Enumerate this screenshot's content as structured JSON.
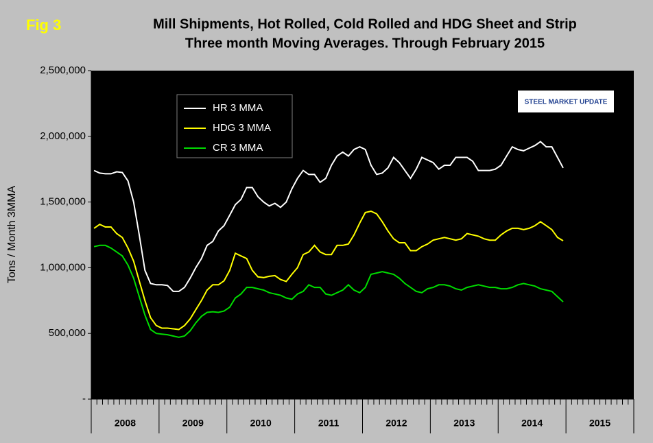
{
  "chart_data": {
    "type": "line",
    "label": "Fig 3",
    "title": "Mill Shipments, Hot Rolled, Cold Rolled and HDG Sheet and Strip",
    "subtitle": "Three month Moving Averages. Through February 2015",
    "y_label": "Tons / Month 3MMA",
    "logo": "STEEL MARKET UPDATE",
    "year_labels": [
      "2008",
      "2009",
      "2010",
      "2011",
      "2012",
      "2013",
      "2014",
      "2015"
    ],
    "ylim": [
      0,
      2500000
    ],
    "yticks": [
      {
        "value": 0,
        "label": "-"
      },
      {
        "value": 500000,
        "label": "500,000"
      },
      {
        "value": 1000000,
        "label": "1,000,000"
      },
      {
        "value": 1500000,
        "label": "1,500,000"
      },
      {
        "value": 2000000,
        "label": "2,000,000"
      },
      {
        "value": 2500000,
        "label": "2,500,000"
      }
    ],
    "legend": "top-left",
    "series": [
      {
        "name": "HR 3 MMA",
        "color": "#ffffff",
        "values": [
          1740000,
          1720000,
          1715000,
          1715000,
          1730000,
          1725000,
          1660000,
          1500000,
          1250000,
          980000,
          880000,
          870000,
          870000,
          865000,
          820000,
          820000,
          850000,
          920000,
          1000000,
          1070000,
          1170000,
          1200000,
          1280000,
          1320000,
          1400000,
          1480000,
          1520000,
          1610000,
          1610000,
          1540000,
          1500000,
          1470000,
          1490000,
          1460000,
          1500000,
          1600000,
          1680000,
          1740000,
          1710000,
          1710000,
          1650000,
          1680000,
          1780000,
          1850000,
          1880000,
          1850000,
          1900000,
          1920000,
          1900000,
          1780000,
          1710000,
          1720000,
          1760000,
          1840000,
          1800000,
          1740000,
          1680000,
          1750000,
          1840000,
          1820000,
          1800000,
          1750000,
          1780000,
          1780000,
          1840000,
          1840000,
          1840000,
          1810000,
          1740000,
          1740000,
          1740000,
          1750000,
          1780000,
          1850000,
          1920000,
          1900000,
          1890000,
          1910000,
          1930000,
          1960000,
          1920000,
          1920000,
          1840000,
          1760000
        ]
      },
      {
        "name": "HDG 3 MMA",
        "color": "#ffff00",
        "values": [
          1300000,
          1330000,
          1310000,
          1310000,
          1260000,
          1230000,
          1150000,
          1050000,
          900000,
          750000,
          620000,
          560000,
          540000,
          540000,
          535000,
          530000,
          560000,
          610000,
          680000,
          750000,
          830000,
          870000,
          870000,
          900000,
          980000,
          1110000,
          1090000,
          1070000,
          980000,
          930000,
          925000,
          935000,
          940000,
          910000,
          895000,
          950000,
          1000000,
          1100000,
          1120000,
          1170000,
          1120000,
          1100000,
          1100000,
          1170000,
          1170000,
          1180000,
          1250000,
          1340000,
          1420000,
          1430000,
          1410000,
          1350000,
          1280000,
          1220000,
          1190000,
          1190000,
          1130000,
          1130000,
          1160000,
          1180000,
          1210000,
          1220000,
          1230000,
          1220000,
          1210000,
          1220000,
          1260000,
          1250000,
          1240000,
          1220000,
          1210000,
          1210000,
          1250000,
          1280000,
          1300000,
          1300000,
          1290000,
          1300000,
          1320000,
          1350000,
          1320000,
          1290000,
          1230000,
          1205000
        ]
      },
      {
        "name": "CR 3 MMA",
        "color": "#00dd00",
        "values": [
          1160000,
          1170000,
          1170000,
          1150000,
          1120000,
          1090000,
          1020000,
          920000,
          780000,
          640000,
          530000,
          500000,
          495000,
          490000,
          480000,
          470000,
          480000,
          520000,
          580000,
          630000,
          660000,
          665000,
          660000,
          670000,
          700000,
          770000,
          800000,
          850000,
          850000,
          840000,
          830000,
          810000,
          800000,
          790000,
          770000,
          760000,
          800000,
          820000,
          870000,
          850000,
          850000,
          800000,
          790000,
          810000,
          830000,
          870000,
          830000,
          810000,
          850000,
          950000,
          960000,
          970000,
          960000,
          950000,
          920000,
          880000,
          850000,
          820000,
          810000,
          840000,
          850000,
          870000,
          870000,
          860000,
          840000,
          830000,
          850000,
          860000,
          870000,
          860000,
          850000,
          850000,
          840000,
          840000,
          850000,
          870000,
          880000,
          870000,
          860000,
          840000,
          830000,
          820000,
          780000,
          740000
        ]
      }
    ]
  }
}
